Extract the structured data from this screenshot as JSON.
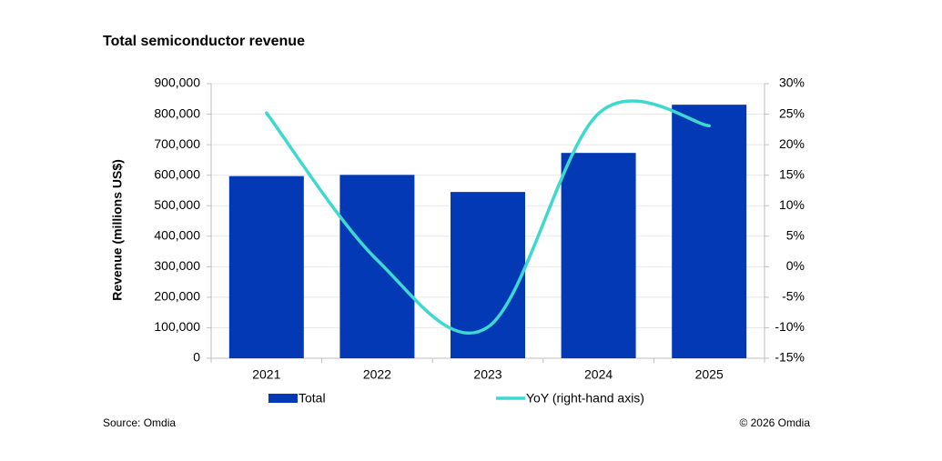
{
  "chart_data": {
    "type": "bar-line",
    "title": "Total semiconductor revenue",
    "categories": [
      "2021",
      "2022",
      "2023",
      "2024",
      "2025"
    ],
    "series": [
      {
        "name": "Total",
        "color": "#0339b5",
        "values": [
          597000,
          601000,
          545000,
          673000,
          831000
        ]
      },
      {
        "name": "YoY (right-hand axis)",
        "color": "#3dd9cf",
        "axis": "y2",
        "values": [
          25.2,
          1.1,
          -9.9,
          25.1,
          23.1
        ]
      }
    ],
    "ylabel": "Revenue (millions US$)",
    "ylim": [
      0,
      900000
    ],
    "yticks": [
      0,
      {
        "value": 100000,
        "label": "100,000"
      },
      {
        "value": 200000,
        "label": "200,000"
      },
      {
        "value": 300000,
        "label": "300,000"
      },
      {
        "value": 400000,
        "label": "400,000"
      },
      {
        "value": 500000,
        "label": "500,000"
      },
      {
        "value": 600000,
        "label": "600,000"
      },
      {
        "value": 700000,
        "label": "700,000"
      },
      {
        "value": 800000,
        "label": "800,000"
      },
      {
        "value": 900000,
        "label": "900,000"
      }
    ],
    "y2lim": [
      -15,
      30
    ],
    "y2ticks": [
      {
        "value": -15,
        "label": "-15%"
      },
      {
        "value": -10,
        "label": "-10%"
      },
      {
        "value": -5,
        "label": "-5%"
      },
      {
        "value": 0,
        "label": "0%"
      },
      {
        "value": 5,
        "label": "5%"
      },
      {
        "value": 10,
        "label": "10%"
      },
      {
        "value": 15,
        "label": "15%"
      },
      {
        "value": 20,
        "label": "20%"
      },
      {
        "value": 25,
        "label": "25%"
      },
      {
        "value": 30,
        "label": "30%"
      }
    ],
    "grid": true,
    "source": "Source: Omdia",
    "copyright": "© 2026 Omdia"
  }
}
